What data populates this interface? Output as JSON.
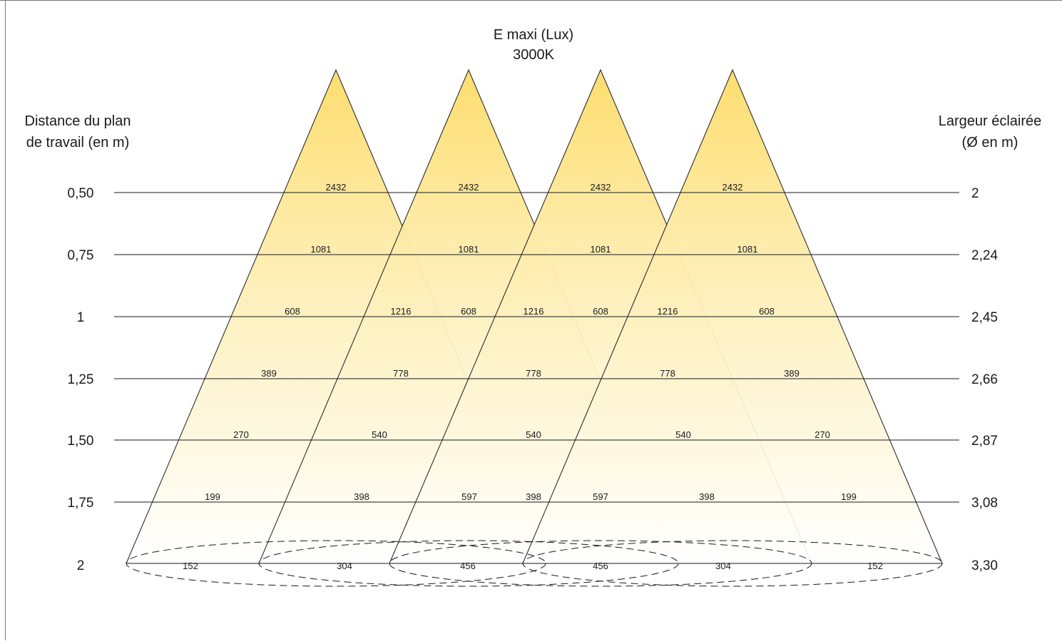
{
  "header": {
    "title_line1": "E maxi (Lux)",
    "title_line2": "3000K",
    "left_label_line1": "Distance du plan",
    "left_label_line2": "de travail (en m)",
    "right_label_line1": "Largeur éclairée",
    "right_label_line2": "(Ø en m)"
  },
  "colors": {
    "cone_top": "#FDDD6E",
    "cone_bottom": "#FFFFFF",
    "line": "#1A1A1A",
    "frame": "#777777"
  },
  "chart_data": {
    "type": "table",
    "distances": [
      "0,50",
      "0,75",
      "1",
      "1,25",
      "1,50",
      "1,75",
      "2"
    ],
    "widths": [
      "2",
      "2,24",
      "2,45",
      "2,66",
      "2,87",
      "3,08",
      "3,30"
    ],
    "rows": [
      [
        "2432",
        "2432",
        "2432",
        "2432"
      ],
      [
        "1081",
        "1081",
        "1081",
        "1081"
      ],
      [
        "608",
        "1216",
        "608",
        "1216",
        "608",
        "1216",
        "608"
      ],
      [
        "389",
        "778",
        "778",
        "778",
        "389"
      ],
      [
        "270",
        "540",
        "540",
        "540",
        "270"
      ],
      [
        "199",
        "398",
        "597",
        "398",
        "597",
        "398",
        "199"
      ],
      [
        "152",
        "304",
        "456",
        "456",
        "304",
        "152"
      ]
    ]
  }
}
